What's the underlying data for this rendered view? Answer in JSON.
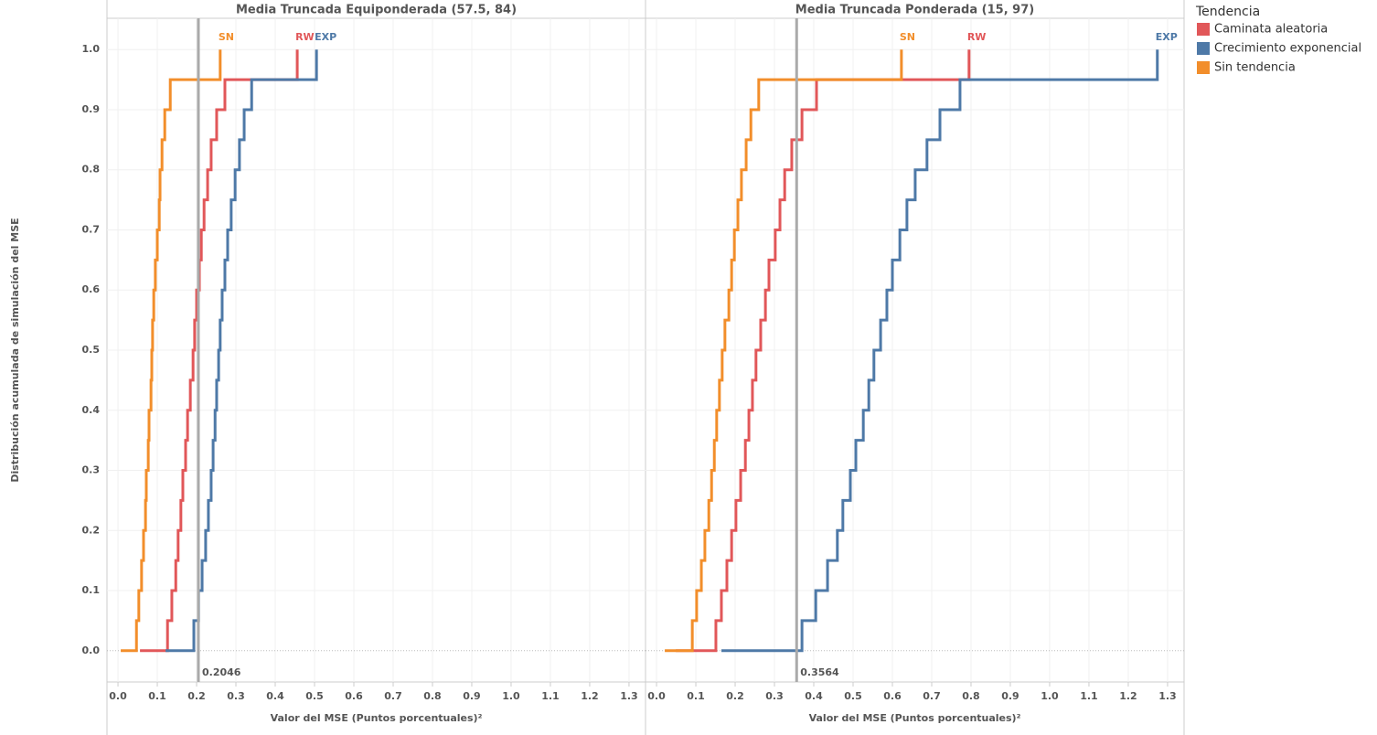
{
  "chart_data": [
    {
      "type": "line",
      "step": true,
      "title": "Media Truncada Equiponderada (57.5, 84)",
      "x_label": "Valor del MSE (Puntos porcentuales)²",
      "y_label": "Distribución acumulada de simulación del MSE",
      "legend_title": "Tendencia",
      "legend": "right",
      "grid": true,
      "xlim": [
        -0.028,
        1.342
      ],
      "ylim": [
        -0.052,
        1.052
      ],
      "xticks": [
        {
          "value": 0,
          "label": "0.0"
        },
        0.1,
        0.2,
        0.3,
        0.4,
        0.5,
        0.6,
        0.7,
        0.8,
        0.9,
        {
          "value": 1,
          "label": "1.0"
        },
        1.1,
        1.2,
        1.3
      ],
      "yticks": [
        {
          "value": 0,
          "label": "0.0"
        },
        0.1,
        0.2,
        0.3,
        0.4,
        0.5,
        0.6,
        0.7,
        0.8,
        0.9,
        {
          "value": 1,
          "label": "1.0"
        }
      ],
      "reference_line": {
        "value": 0.2046
      },
      "series": [
        {
          "name": "Caminata aleatoria",
          "end_label": "RW",
          "color": "#e15759",
          "x": [
            0.056,
            0.126,
            0.137,
            0.147,
            0.153,
            0.16,
            0.165,
            0.172,
            0.177,
            0.184,
            0.191,
            0.195,
            0.2,
            0.207,
            0.212,
            0.219,
            0.228,
            0.237,
            0.251,
            0.272,
            0.456
          ],
          "values": [
            0,
            0.05,
            0.1,
            0.15,
            0.2,
            0.25,
            0.3,
            0.35,
            0.4,
            0.45,
            0.5,
            0.55,
            0.6,
            0.65,
            0.7,
            0.75,
            0.8,
            0.85,
            0.9,
            0.95,
            1
          ]
        },
        {
          "name": "Crecimiento exponencial",
          "end_label": "EXP",
          "color": "#4e79a7",
          "x": [
            0.121,
            0.193,
            0.205,
            0.214,
            0.223,
            0.23,
            0.237,
            0.242,
            0.247,
            0.251,
            0.256,
            0.26,
            0.265,
            0.272,
            0.279,
            0.288,
            0.298,
            0.309,
            0.321,
            0.34,
            0.505
          ],
          "values": [
            0,
            0.05,
            0.1,
            0.15,
            0.2,
            0.25,
            0.3,
            0.35,
            0.4,
            0.45,
            0.5,
            0.55,
            0.6,
            0.65,
            0.7,
            0.75,
            0.8,
            0.85,
            0.9,
            0.95,
            1
          ]
        },
        {
          "name": "Sin tendencia",
          "end_label": "SN",
          "color": "#f28e2b",
          "x": [
            0.007,
            0.047,
            0.053,
            0.06,
            0.065,
            0.07,
            0.072,
            0.077,
            0.079,
            0.084,
            0.086,
            0.088,
            0.091,
            0.095,
            0.1,
            0.105,
            0.107,
            0.112,
            0.119,
            0.133,
            0.26
          ],
          "values": [
            0,
            0.05,
            0.1,
            0.15,
            0.2,
            0.25,
            0.3,
            0.35,
            0.4,
            0.45,
            0.5,
            0.55,
            0.6,
            0.65,
            0.7,
            0.75,
            0.8,
            0.85,
            0.9,
            0.95,
            1
          ]
        }
      ]
    },
    {
      "type": "line",
      "step": true,
      "title": "Media Truncada Ponderada (15, 97)",
      "x_label": "Valor del MSE (Puntos porcentuales)²",
      "grid": true,
      "xlim": [
        -0.028,
        1.342
      ],
      "ylim": [
        -0.052,
        1.052
      ],
      "xticks": [
        {
          "value": 0,
          "label": "0.0"
        },
        0.1,
        0.2,
        0.3,
        0.4,
        0.5,
        0.6,
        0.7,
        0.8,
        0.9,
        {
          "value": 1,
          "label": "1.0"
        },
        1.1,
        1.2,
        1.3
      ],
      "yticks": [
        {
          "value": 0,
          "label": "0.0"
        },
        0.1,
        0.2,
        0.3,
        0.4,
        0.5,
        0.6,
        0.7,
        0.8,
        0.9,
        {
          "value": 1,
          "label": "1.0"
        }
      ],
      "reference_line": {
        "value": 0.3564
      },
      "series": [
        {
          "name": "Caminata aleatoria",
          "end_label": "RW",
          "color": "#e15759",
          "x": [
            0.049,
            0.151,
            0.165,
            0.179,
            0.191,
            0.202,
            0.214,
            0.226,
            0.235,
            0.244,
            0.253,
            0.265,
            0.277,
            0.286,
            0.302,
            0.314,
            0.326,
            0.344,
            0.37,
            0.407,
            0.795
          ],
          "values": [
            0,
            0.05,
            0.1,
            0.15,
            0.2,
            0.25,
            0.3,
            0.35,
            0.4,
            0.45,
            0.5,
            0.55,
            0.6,
            0.65,
            0.7,
            0.75,
            0.8,
            0.85,
            0.9,
            0.95,
            1
          ]
        },
        {
          "name": "Crecimiento exponencial",
          "end_label": "EXP",
          "color": "#4e79a7",
          "x": [
            0.165,
            0.37,
            0.405,
            0.435,
            0.46,
            0.474,
            0.493,
            0.507,
            0.526,
            0.54,
            0.553,
            0.57,
            0.586,
            0.6,
            0.619,
            0.637,
            0.658,
            0.688,
            0.721,
            0.772,
            1.274
          ],
          "values": [
            0,
            0.05,
            0.1,
            0.15,
            0.2,
            0.25,
            0.3,
            0.35,
            0.4,
            0.45,
            0.5,
            0.55,
            0.6,
            0.65,
            0.7,
            0.75,
            0.8,
            0.85,
            0.9,
            0.95,
            1
          ]
        },
        {
          "name": "Sin tendencia",
          "end_label": "SN",
          "color": "#f28e2b",
          "x": [
            0.021,
            0.091,
            0.102,
            0.114,
            0.123,
            0.133,
            0.14,
            0.147,
            0.153,
            0.16,
            0.167,
            0.174,
            0.184,
            0.191,
            0.198,
            0.207,
            0.216,
            0.228,
            0.24,
            0.26,
            0.623
          ],
          "values": [
            0,
            0.05,
            0.1,
            0.15,
            0.2,
            0.25,
            0.3,
            0.35,
            0.4,
            0.45,
            0.5,
            0.55,
            0.6,
            0.65,
            0.7,
            0.75,
            0.8,
            0.85,
            0.9,
            0.95,
            1
          ]
        }
      ]
    }
  ]
}
